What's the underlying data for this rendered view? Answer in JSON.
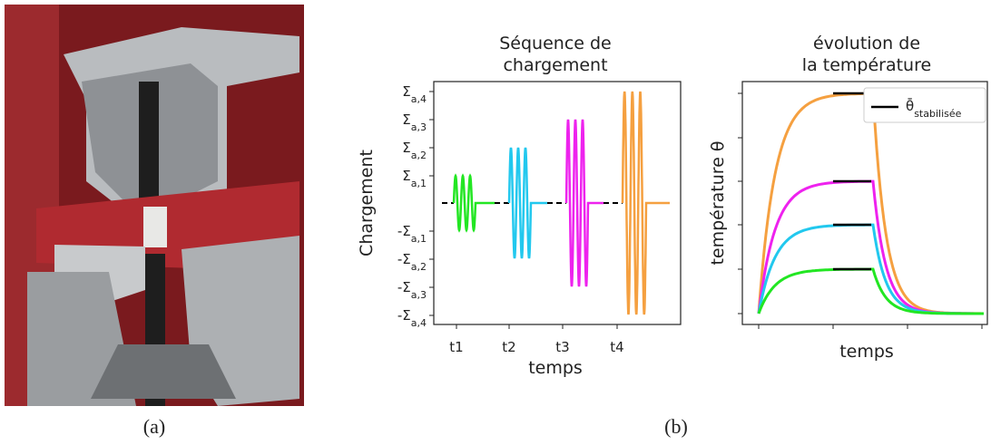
{
  "panel_a": {
    "caption": "(a)"
  },
  "panel_b": {
    "caption": "(b)"
  },
  "loading_chart": {
    "title_lines": [
      "Séquence de",
      "chargement"
    ],
    "y_label": "Chargement",
    "x_label": "temps",
    "y_tick_labels": [
      {
        "main": "Σ",
        "sub": "a,4"
      },
      {
        "main": "Σ",
        "sub": "a,3"
      },
      {
        "main": "Σ",
        "sub": "a,2"
      },
      {
        "main": "Σ",
        "sub": "a,1"
      },
      {
        "main": "-Σ",
        "sub": "a,1"
      },
      {
        "main": "-Σ",
        "sub": "a,2"
      },
      {
        "main": "-Σ",
        "sub": "a,3"
      },
      {
        "main": "-Σ",
        "sub": "a,4"
      }
    ],
    "x_tick_labels": [
      "t1",
      "t2",
      "t3",
      "t4"
    ],
    "colors": [
      "#22e622",
      "#22c8ee",
      "#ee22ee",
      "#f5a040"
    ]
  },
  "temperature_chart": {
    "title_lines": [
      "évolution de",
      "la température"
    ],
    "y_label": "température θ",
    "x_label": "temps",
    "legend": {
      "main": "θ̄",
      "sub": "stabilisée"
    },
    "colors": [
      "#f5a040",
      "#ee22ee",
      "#22c8ee",
      "#22e622"
    ]
  }
}
